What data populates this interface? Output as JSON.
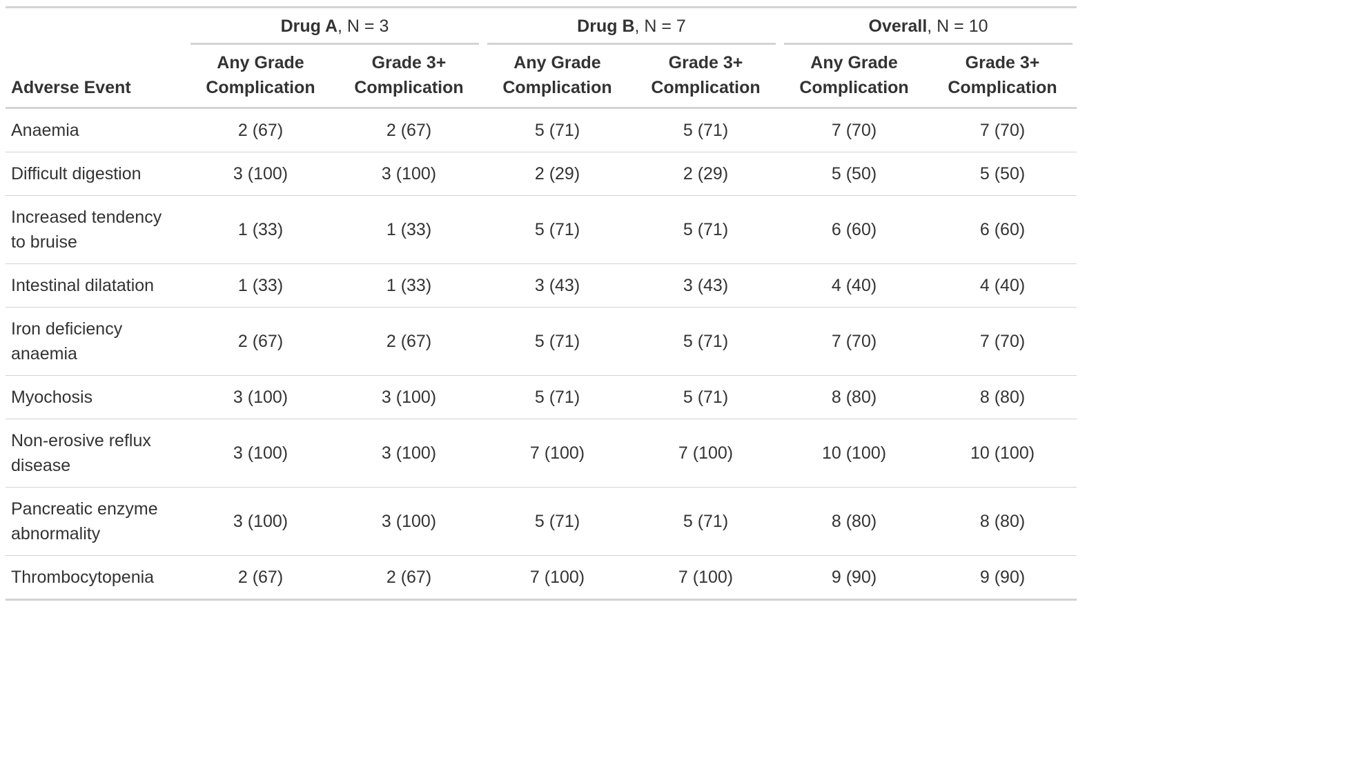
{
  "table": {
    "stub_header": "Adverse Event",
    "spanners": [
      {
        "label": "Drug A",
        "n": ", N = 3"
      },
      {
        "label": "Drug B",
        "n": ", N = 7"
      },
      {
        "label": "Overall",
        "n": ", N = 10"
      }
    ],
    "columns": [
      "Any Grade Complication",
      "Grade 3+ Complication",
      "Any Grade Complication",
      "Grade 3+ Complication",
      "Any Grade Complication",
      "Grade 3+ Complication"
    ],
    "rows": [
      {
        "event": "Anaemia",
        "cells": [
          "2 (67)",
          "2 (67)",
          "5 (71)",
          "5 (71)",
          "7 (70)",
          "7 (70)"
        ]
      },
      {
        "event": "Difficult digestion",
        "cells": [
          "3 (100)",
          "3 (100)",
          "2 (29)",
          "2 (29)",
          "5 (50)",
          "5 (50)"
        ]
      },
      {
        "event": "Increased tendency to bruise",
        "cells": [
          "1 (33)",
          "1 (33)",
          "5 (71)",
          "5 (71)",
          "6 (60)",
          "6 (60)"
        ]
      },
      {
        "event": "Intestinal dilatation",
        "cells": [
          "1 (33)",
          "1 (33)",
          "3 (43)",
          "3 (43)",
          "4 (40)",
          "4 (40)"
        ]
      },
      {
        "event": "Iron deficiency anaemia",
        "cells": [
          "2 (67)",
          "2 (67)",
          "5 (71)",
          "5 (71)",
          "7 (70)",
          "7 (70)"
        ]
      },
      {
        "event": "Myochosis",
        "cells": [
          "3 (100)",
          "3 (100)",
          "5 (71)",
          "5 (71)",
          "8 (80)",
          "8 (80)"
        ]
      },
      {
        "event": "Non-erosive reflux disease",
        "cells": [
          "3 (100)",
          "3 (100)",
          "7 (100)",
          "7 (100)",
          "10 (100)",
          "10 (100)"
        ]
      },
      {
        "event": "Pancreatic enzyme abnormality",
        "cells": [
          "3 (100)",
          "3 (100)",
          "5 (71)",
          "5 (71)",
          "8 (80)",
          "8 (80)"
        ]
      },
      {
        "event": "Thrombocytopenia",
        "cells": [
          "2 (67)",
          "2 (67)",
          "7 (100)",
          "7 (100)",
          "9 (90)",
          "9 (90)"
        ]
      }
    ]
  }
}
